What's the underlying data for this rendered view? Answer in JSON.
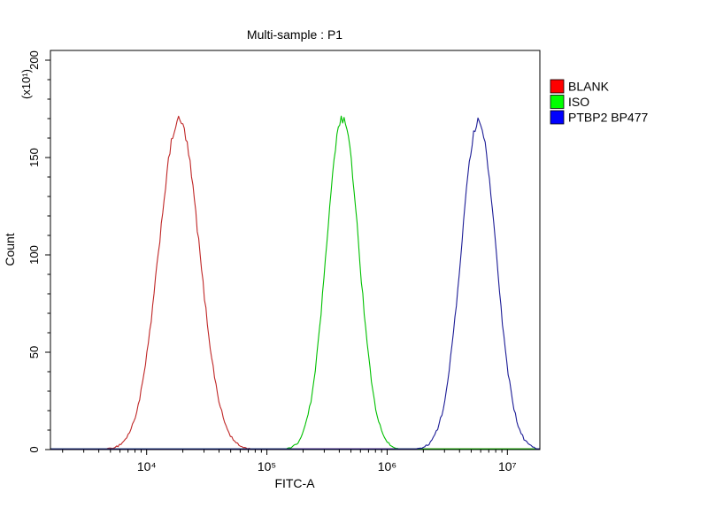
{
  "chart_data": {
    "type": "line",
    "subtype": "flow-cytometry-histogram-overlay",
    "title": "Multi-sample : P1",
    "xlabel": "FITC-A",
    "ylabel": "Count",
    "y_unit_multiplier": "(x10¹)",
    "x_scale": "log",
    "x_range_log10": [
      3.2,
      7.27
    ],
    "ylim": [
      0,
      205
    ],
    "y_ticks": [
      0,
      50,
      100,
      150,
      200
    ],
    "y_minor_tick_step": 10,
    "x_major_ticks": [
      {
        "log10": 4,
        "label": "10⁴"
      },
      {
        "log10": 5,
        "label": "10⁵"
      },
      {
        "log10": 6,
        "label": "10⁶"
      },
      {
        "log10": 7,
        "label": "10⁷"
      }
    ],
    "grid": false,
    "legend_position": "right",
    "series": [
      {
        "name": "BLANK",
        "line_color": "#bf2626",
        "swatch_color": "#ff0000",
        "peak_center_log10": 4.27,
        "peak_sigma_log10": 0.17,
        "peak_height": 169
      },
      {
        "name": "ISO",
        "line_color": "#00c000",
        "swatch_color": "#00ff00",
        "peak_center_log10": 5.63,
        "peak_sigma_log10": 0.135,
        "peak_height": 170
      },
      {
        "name": "PTBP2 BP477",
        "line_color": "#1c1c96",
        "swatch_color": "#0000ff",
        "peak_center_log10": 6.76,
        "peak_sigma_log10": 0.145,
        "peak_height": 168
      }
    ]
  }
}
